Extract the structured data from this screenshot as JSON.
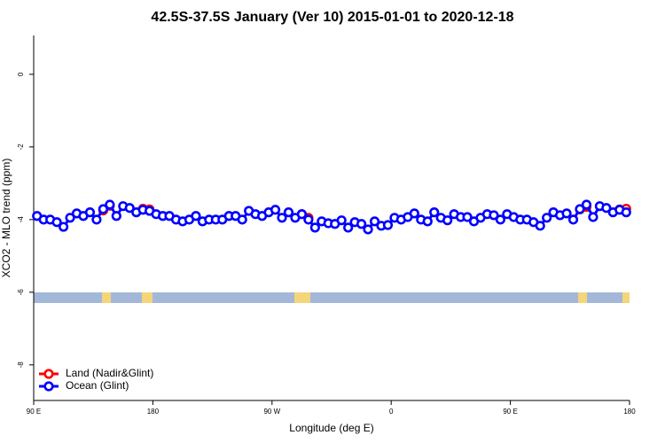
{
  "chart_data": {
    "type": "line",
    "title": "42.5S-37.5S January (Ver 10)   2015-01-01 to 2020-12-18",
    "x_label": "Longitude (deg E)",
    "y_label": "XCO2 - MLO trend (ppm)",
    "xlim": [
      90,
      540
    ],
    "ylim": [
      -8.98,
      1.07
    ],
    "xticks": [
      {
        "value": 90,
        "label": "90 E"
      },
      {
        "value": 180,
        "label": "180"
      },
      {
        "value": 270,
        "label": "90 W"
      },
      {
        "value": 360,
        "label": "0"
      },
      {
        "value": 450,
        "label": "90 E"
      },
      {
        "value": 540,
        "label": "180"
      }
    ],
    "yticks": [
      0,
      -2,
      -4,
      -6,
      -8
    ],
    "legend": "bottomleft",
    "x": [
      92.5,
      97.5,
      102.5,
      107.5,
      112.5,
      117.5,
      122.5,
      127.5,
      132.5,
      137.5,
      142.5,
      147.5,
      152.5,
      157.5,
      162.5,
      167.5,
      172.5,
      177.5,
      182.5,
      187.5,
      192.5,
      197.5,
      202.5,
      207.5,
      212.5,
      217.5,
      222.5,
      227.5,
      232.5,
      237.5,
      242.5,
      247.5,
      252.5,
      257.5,
      262.5,
      267.5,
      272.5,
      277.5,
      282.5,
      287.5,
      292.5,
      297.5,
      302.5,
      307.5,
      312.5,
      317.5,
      322.5,
      327.5,
      332.5,
      337.5,
      342.5,
      347.5,
      352.5,
      357.5,
      362.5,
      367.5,
      372.5,
      377.5,
      382.5,
      387.5,
      392.5,
      397.5,
      402.5,
      407.5,
      412.5,
      417.5,
      422.5,
      427.5,
      432.5,
      437.5,
      442.5,
      447.5,
      452.5,
      457.5,
      462.5,
      467.5,
      472.5,
      477.5,
      482.5,
      487.5,
      492.5,
      497.5,
      502.5,
      507.5,
      512.5,
      517.5,
      522.5,
      527.5,
      532.5,
      537.5
    ],
    "series": [
      {
        "name": "Land (Nadir&Glint)",
        "color": "#ff0000",
        "values": [
          null,
          null,
          null,
          null,
          null,
          null,
          null,
          null,
          null,
          null,
          -3.75,
          -3.62,
          null,
          null,
          null,
          null,
          -3.7,
          -3.72,
          null,
          null,
          null,
          null,
          null,
          null,
          null,
          null,
          null,
          null,
          null,
          null,
          null,
          null,
          null,
          null,
          null,
          null,
          null,
          null,
          null,
          null,
          -3.85,
          -3.95,
          null,
          null,
          null,
          null,
          null,
          null,
          null,
          null,
          null,
          null,
          null,
          null,
          null,
          null,
          null,
          null,
          null,
          null,
          null,
          null,
          null,
          null,
          null,
          null,
          null,
          null,
          null,
          null,
          null,
          null,
          null,
          null,
          null,
          null,
          null,
          null,
          null,
          null,
          null,
          null,
          -3.72,
          -3.65,
          null,
          null,
          null,
          null,
          -3.72,
          -3.7
        ]
      },
      {
        "name": "Ocean (Glint)",
        "color": "#0000ff",
        "values": [
          -3.9,
          -4.0,
          -4.0,
          -4.07,
          -4.2,
          -3.95,
          -3.83,
          -3.9,
          -3.8,
          -4.0,
          -3.71,
          -3.59,
          -3.9,
          -3.63,
          -3.68,
          -3.8,
          -3.73,
          -3.76,
          -3.85,
          -3.9,
          -3.9,
          -4.0,
          -4.05,
          -4.0,
          -3.9,
          -4.05,
          -4.0,
          -4.0,
          -4.0,
          -3.9,
          -3.9,
          -4.0,
          -3.76,
          -3.85,
          -3.9,
          -3.8,
          -3.73,
          -3.95,
          -3.8,
          -3.95,
          -3.85,
          -4.0,
          -4.22,
          -4.05,
          -4.1,
          -4.12,
          -4.02,
          -4.22,
          -4.07,
          -4.12,
          -4.27,
          -4.05,
          -4.17,
          -4.15,
          -3.95,
          -4.0,
          -3.93,
          -3.83,
          -4.0,
          -4.05,
          -3.8,
          -3.95,
          -4.02,
          -3.85,
          -3.93,
          -3.93,
          -4.05,
          -3.95,
          -3.85,
          -3.88,
          -4.0,
          -3.85,
          -3.93,
          -4.0,
          -4.0,
          -4.07,
          -4.17,
          -3.95,
          -3.8,
          -3.88,
          -3.83,
          -4.0,
          -3.71,
          -3.59,
          -3.93,
          -3.63,
          -3.68,
          -3.8,
          -3.73,
          -3.8
        ]
      }
    ]
  }
}
